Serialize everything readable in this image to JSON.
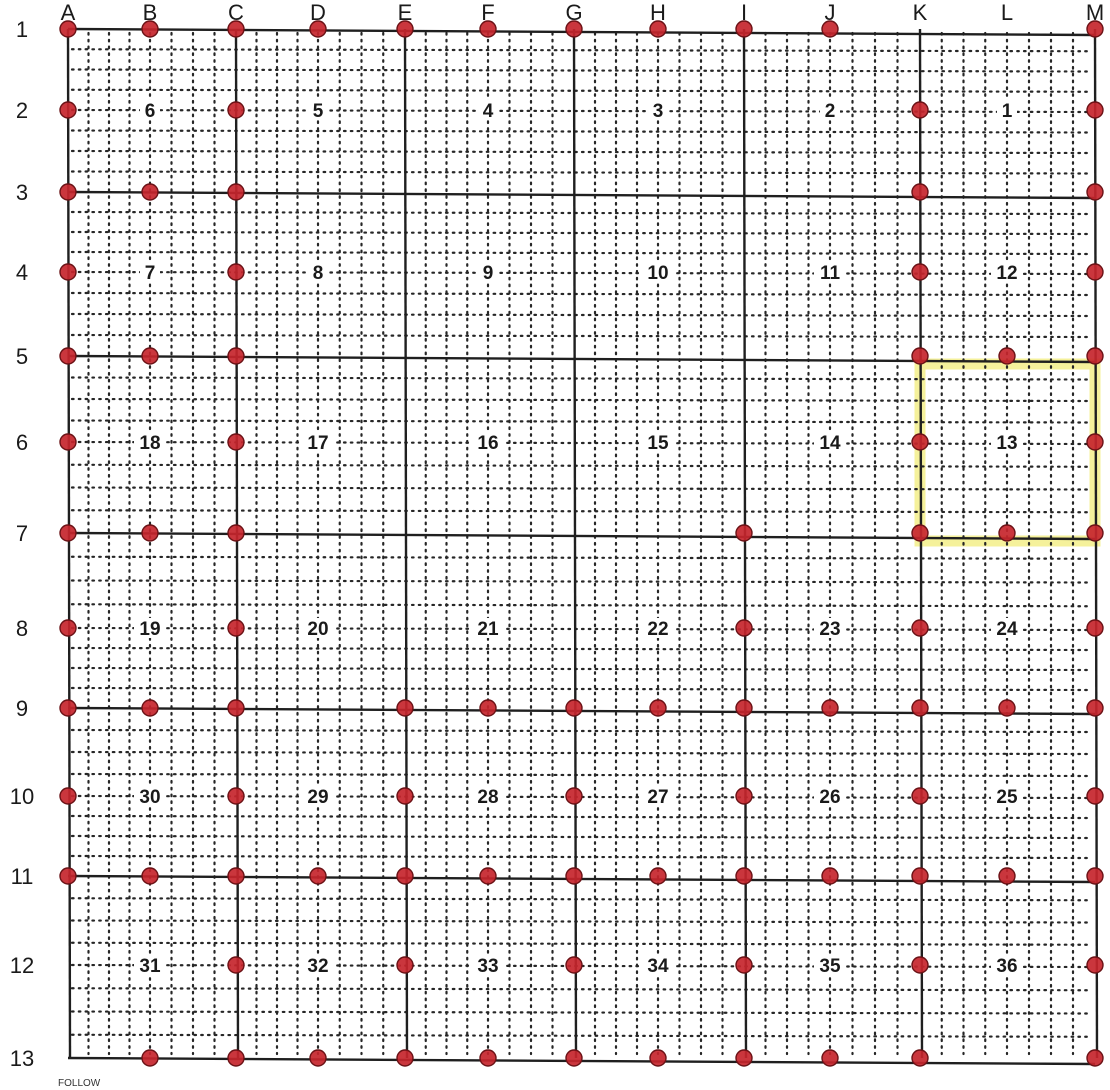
{
  "map": {
    "columns": [
      "A",
      "B",
      "C",
      "D",
      "E",
      "F",
      "G",
      "H",
      "I",
      "J",
      "K",
      "L",
      "M"
    ],
    "rows": [
      "1",
      "2",
      "3",
      "4",
      "5",
      "6",
      "7",
      "8",
      "9",
      "10",
      "11",
      "12",
      "13"
    ],
    "sections": [
      {
        "number": "6",
        "col": "B",
        "row": "2"
      },
      {
        "number": "5",
        "col": "D",
        "row": "2"
      },
      {
        "number": "4",
        "col": "F",
        "row": "2"
      },
      {
        "number": "3",
        "col": "H",
        "row": "2"
      },
      {
        "number": "2",
        "col": "J",
        "row": "2"
      },
      {
        "number": "1",
        "col": "L",
        "row": "2"
      },
      {
        "number": "7",
        "col": "B",
        "row": "4"
      },
      {
        "number": "8",
        "col": "D",
        "row": "4"
      },
      {
        "number": "9",
        "col": "F",
        "row": "4"
      },
      {
        "number": "10",
        "col": "H",
        "row": "4"
      },
      {
        "number": "11",
        "col": "J",
        "row": "4"
      },
      {
        "number": "12",
        "col": "L",
        "row": "4"
      },
      {
        "number": "18",
        "col": "B",
        "row": "6"
      },
      {
        "number": "17",
        "col": "D",
        "row": "6"
      },
      {
        "number": "16",
        "col": "F",
        "row": "6"
      },
      {
        "number": "15",
        "col": "H",
        "row": "6"
      },
      {
        "number": "14",
        "col": "J",
        "row": "6"
      },
      {
        "number": "13",
        "col": "L",
        "row": "6"
      },
      {
        "number": "19",
        "col": "B",
        "row": "8"
      },
      {
        "number": "20",
        "col": "D",
        "row": "8"
      },
      {
        "number": "21",
        "col": "F",
        "row": "8"
      },
      {
        "number": "22",
        "col": "H",
        "row": "8"
      },
      {
        "number": "23",
        "col": "J",
        "row": "8"
      },
      {
        "number": "24",
        "col": "L",
        "row": "8"
      },
      {
        "number": "30",
        "col": "B",
        "row": "10"
      },
      {
        "number": "29",
        "col": "D",
        "row": "10"
      },
      {
        "number": "28",
        "col": "F",
        "row": "10"
      },
      {
        "number": "27",
        "col": "H",
        "row": "10"
      },
      {
        "number": "26",
        "col": "J",
        "row": "10"
      },
      {
        "number": "25",
        "col": "L",
        "row": "10"
      },
      {
        "number": "31",
        "col": "B",
        "row": "12"
      },
      {
        "number": "32",
        "col": "D",
        "row": "12"
      },
      {
        "number": "33",
        "col": "F",
        "row": "12"
      },
      {
        "number": "34",
        "col": "H",
        "row": "12"
      },
      {
        "number": "35",
        "col": "J",
        "row": "12"
      },
      {
        "number": "36",
        "col": "L",
        "row": "12"
      }
    ],
    "highlighted_section": "13",
    "markers": {
      "A": [
        "1",
        "2",
        "3",
        "4",
        "5",
        "6",
        "7",
        "8",
        "9",
        "10",
        "11"
      ],
      "B": [
        "1",
        "3",
        "5",
        "7",
        "9",
        "11",
        "13"
      ],
      "C": [
        "1",
        "2",
        "3",
        "4",
        "5",
        "6",
        "7",
        "8",
        "9",
        "10",
        "11",
        "12",
        "13"
      ],
      "D": [
        "1",
        "11",
        "13"
      ],
      "E": [
        "1",
        "9",
        "10",
        "11",
        "12",
        "13"
      ],
      "F": [
        "1",
        "9",
        "11",
        "13"
      ],
      "G": [
        "1",
        "9",
        "10",
        "11",
        "12",
        "13"
      ],
      "H": [
        "1",
        "9",
        "11",
        "13"
      ],
      "I": [
        "1",
        "7",
        "8",
        "9",
        "10",
        "11",
        "12",
        "13"
      ],
      "J": [
        "1",
        "9",
        "11",
        "13"
      ],
      "K": [
        "2",
        "3",
        "4",
        "5",
        "6",
        "7",
        "8",
        "9",
        "10",
        "11",
        "12",
        "13"
      ],
      "L": [
        "5",
        "7",
        "9",
        "11"
      ],
      "M": [
        "1",
        "2",
        "3",
        "4",
        "5",
        "6",
        "7",
        "8",
        "9",
        "10",
        "11",
        "12",
        "13"
      ]
    },
    "footer_text": "FOLLOW",
    "colors": {
      "paper": "#ffffff",
      "grid_line": "#1f1f1f",
      "dotted_line": "#262626",
      "marker_fill": "#c5252c",
      "marker_stroke": "#6b1216",
      "highlight": "#f3ee8a"
    }
  }
}
